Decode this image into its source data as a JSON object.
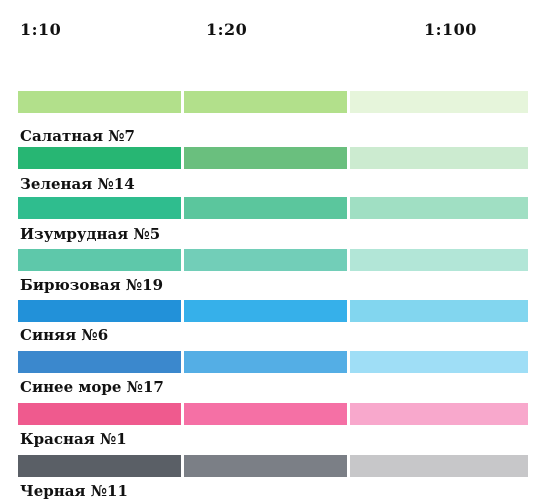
{
  "headers": [
    "1:10",
    "1:20",
    "1:100"
  ],
  "colors": [
    {
      "name": "Салатная №7",
      "swatches": [
        "#b2e08b",
        "#b2e08b",
        "#e6f5db"
      ]
    },
    {
      "name": "Зеленая №14",
      "swatches": [
        "#27b673",
        "#6abf7e",
        "#ccebd0"
      ]
    },
    {
      "name": "Изумрудная №5",
      "swatches": [
        "#2fbd8e",
        "#5bc69d",
        "#a0dfc3"
      ]
    },
    {
      "name": "Бирюзовая №19",
      "swatches": [
        "#5ec8aa",
        "#72ceb8",
        "#b2e6d7"
      ]
    },
    {
      "name": "Синяя №6",
      "swatches": [
        "#2291d9",
        "#36b0ea",
        "#82d6ef"
      ]
    },
    {
      "name": "Синее море №17",
      "swatches": [
        "#3b88cd",
        "#54aee5",
        "#9fdef6"
      ]
    },
    {
      "name": "Красная №1",
      "swatches": [
        "#ef5a8e",
        "#f570a5",
        "#f8a8cc"
      ]
    },
    {
      "name": "Черная №11",
      "swatches": [
        "#5a5f66",
        "#7b7f86",
        "#c7c7c9"
      ]
    }
  ]
}
